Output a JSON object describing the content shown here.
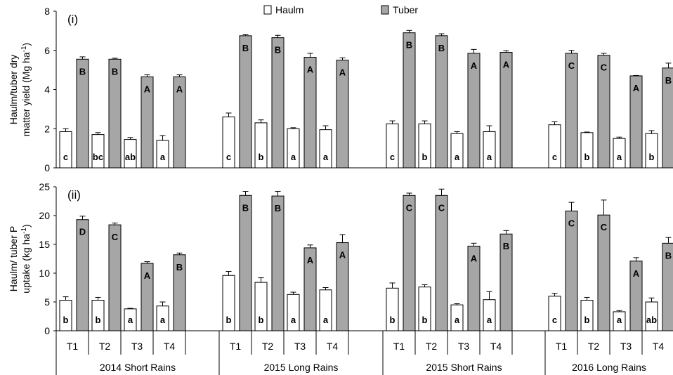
{
  "chart_data": {
    "type": "bar",
    "colors": {
      "haulm": "#ffffff",
      "tuber": "#a6a6a6",
      "stroke": "#000000"
    },
    "legend": [
      "Haulm",
      "Tuber"
    ],
    "seasons": [
      "2014 Short Rains",
      "2015 Long Rains",
      "2015 Short Rains",
      "2016 Long Rains"
    ],
    "treatments": [
      "T1",
      "T2",
      "T3",
      "T4"
    ],
    "panels": [
      {
        "label": "(i)",
        "ylabel_line1": "Haulm/tuber dry",
        "ylabel_line2": "matter yield (Mg ha",
        "ylabel_sup": "-1",
        "ylabel_tail": ")",
        "ylim": [
          0,
          8
        ],
        "yticks": [
          "0",
          "2",
          "4",
          "6",
          "8"
        ],
        "haulm": [
          [
            1.85,
            1.7,
            1.45,
            1.4
          ],
          [
            2.6,
            2.3,
            2.0,
            1.95
          ],
          [
            2.25,
            2.25,
            1.75,
            1.85
          ],
          [
            2.2,
            1.8,
            1.5,
            1.75
          ]
        ],
        "haulm_err": [
          [
            0.15,
            0.1,
            0.1,
            0.25
          ],
          [
            0.2,
            0.15,
            0.05,
            0.2
          ],
          [
            0.15,
            0.15,
            0.1,
            0.3
          ],
          [
            0.15,
            0.03,
            0.07,
            0.15
          ]
        ],
        "tuber": [
          [
            5.55,
            5.55,
            4.65,
            4.65
          ],
          [
            6.75,
            6.65,
            5.65,
            5.5
          ],
          [
            6.9,
            6.75,
            5.85,
            5.9
          ],
          [
            5.85,
            5.75,
            4.7,
            5.1
          ]
        ],
        "tuber_err": [
          [
            0.12,
            0.05,
            0.1,
            0.1
          ],
          [
            0.05,
            0.12,
            0.2,
            0.12
          ],
          [
            0.12,
            0.1,
            0.2,
            0.08
          ],
          [
            0.15,
            0.1,
            0.02,
            0.25
          ]
        ],
        "haulm_letters": [
          [
            "c",
            "bc",
            "ab",
            "a"
          ],
          [
            "c",
            "b",
            "a",
            "a"
          ],
          [
            "c",
            "b",
            "a",
            "a"
          ],
          [
            "c",
            "b",
            "a",
            "b"
          ]
        ],
        "tuber_letters": [
          [
            "B",
            "B",
            "A",
            "A"
          ],
          [
            "B",
            "B",
            "A",
            "A"
          ],
          [
            "B",
            "B",
            "A",
            "A"
          ],
          [
            "C",
            "C",
            "A",
            "B"
          ]
        ]
      },
      {
        "label": "(ii)",
        "ylabel_line1": "Haulm/ tuber P",
        "ylabel_line2": "uptake (kg ha",
        "ylabel_sup": "-1",
        "ylabel_tail": ")",
        "ylim": [
          0,
          25
        ],
        "yticks": [
          "0",
          "5",
          "10",
          "15",
          "20",
          "25"
        ],
        "haulm": [
          [
            5.3,
            5.3,
            3.8,
            4.3
          ],
          [
            9.6,
            8.4,
            6.3,
            7.1
          ],
          [
            7.4,
            7.6,
            4.5,
            5.4
          ],
          [
            6.0,
            5.3,
            3.3,
            5.0
          ]
        ],
        "haulm_err": [
          [
            0.6,
            0.5,
            0.1,
            0.7
          ],
          [
            0.7,
            0.8,
            0.4,
            0.4
          ],
          [
            0.9,
            0.4,
            0.2,
            1.4
          ],
          [
            0.5,
            0.5,
            0.2,
            0.7
          ]
        ],
        "tuber": [
          [
            19.3,
            18.4,
            11.7,
            13.2
          ],
          [
            23.5,
            23.4,
            14.4,
            15.3
          ],
          [
            23.5,
            23.5,
            14.7,
            16.8
          ],
          [
            20.8,
            20.1,
            12.1,
            15.2
          ]
        ],
        "tuber_err": [
          [
            0.6,
            0.3,
            0.3,
            0.3
          ],
          [
            0.7,
            0.8,
            0.5,
            1.4
          ],
          [
            0.4,
            1.1,
            0.5,
            0.6
          ],
          [
            1.5,
            2.6,
            0.6,
            1.0
          ]
        ],
        "haulm_letters": [
          [
            "b",
            "b",
            "a",
            "a"
          ],
          [
            "b",
            "b",
            "a",
            "a"
          ],
          [
            "b",
            "b",
            "a",
            "a"
          ],
          [
            "c",
            "b",
            "a",
            "ab"
          ]
        ],
        "tuber_letters": [
          [
            "D",
            "C",
            "A",
            "B"
          ],
          [
            "B",
            "B",
            "A",
            "A"
          ],
          [
            "C",
            "C",
            "A",
            "B"
          ],
          [
            "C",
            "C",
            "A",
            "B"
          ]
        ]
      }
    ]
  }
}
